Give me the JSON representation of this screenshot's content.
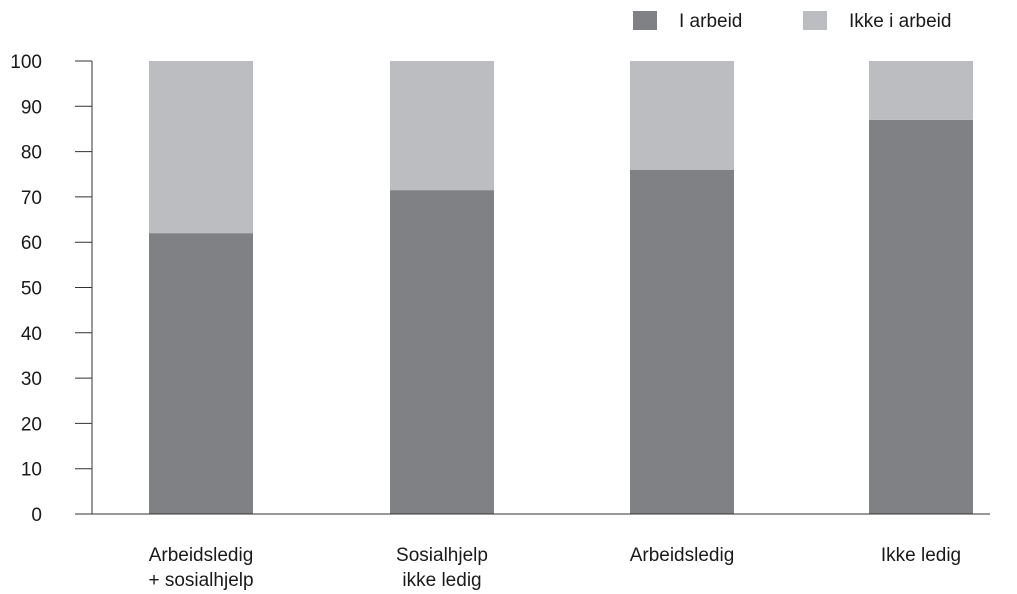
{
  "chart_data": {
    "type": "bar",
    "stacked": true,
    "title": "",
    "xlabel": "",
    "ylabel": "",
    "ylim": [
      0,
      100
    ],
    "yticks": [
      0,
      10,
      20,
      30,
      40,
      50,
      60,
      70,
      80,
      90,
      100
    ],
    "grid": false,
    "legend_position": "top-right",
    "categories": [
      [
        "Arbeidsledig",
        "+ sosialhjelp"
      ],
      [
        "Sosialhjelp",
        "ikke ledig"
      ],
      [
        "Arbeidsledig"
      ],
      [
        "Ikke ledig"
      ]
    ],
    "series": [
      {
        "name": "I arbeid",
        "color": "#808184",
        "values": [
          62,
          71.5,
          76,
          87
        ]
      },
      {
        "name": "Ikke i arbeid",
        "color": "#bcbdc0",
        "values": [
          38,
          28.5,
          24,
          13
        ]
      }
    ]
  }
}
